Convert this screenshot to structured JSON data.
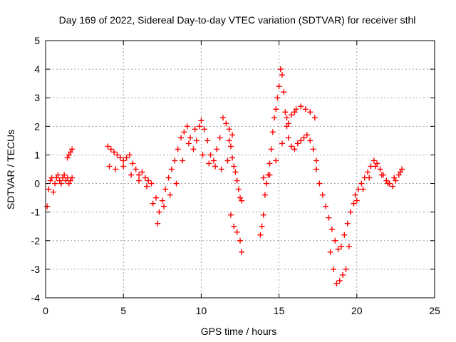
{
  "chart_data": {
    "type": "scatter",
    "title": "Day 169 of 2022, Sidereal Day-to-day VTEC variation (SDTVAR) for receiver sthl",
    "xlabel": "GPS time / hours",
    "ylabel": "SDTVAR / TECUs",
    "xlim": [
      0,
      25
    ],
    "ylim": [
      -4,
      5
    ],
    "xticks": [
      "0",
      "5",
      "10",
      "15",
      "20",
      "25"
    ],
    "yticks": [
      "-4",
      "-3",
      "-2",
      "-1",
      "0",
      "1",
      "2",
      "3",
      "4",
      "5"
    ],
    "grid": true,
    "marker": "+",
    "series_color": "#ff0000",
    "series": [
      {
        "name": "SDTVAR",
        "x": [
          0.1,
          0.2,
          0.3,
          0.4,
          0.5,
          0.6,
          0.7,
          0.8,
          0.9,
          1.0,
          1.1,
          1.2,
          1.3,
          1.4,
          1.5,
          1.6,
          1.7,
          1.4,
          1.5,
          1.6,
          1.7,
          4.0,
          4.2,
          4.4,
          4.6,
          4.8,
          5.0,
          5.2,
          5.4,
          5.6,
          5.8,
          6.0,
          6.2,
          6.4,
          6.6,
          6.8,
          4.1,
          4.5,
          5.0,
          5.5,
          6.0,
          6.5,
          6.9,
          7.1,
          7.3,
          7.5,
          7.7,
          7.9,
          8.1,
          8.3,
          8.5,
          8.7,
          8.9,
          9.1,
          9.3,
          9.5,
          9.7,
          9.9,
          7.2,
          7.6,
          8.0,
          8.4,
          8.8,
          9.2,
          9.6,
          10.0,
          10.2,
          10.4,
          10.6,
          10.8,
          11.0,
          11.2,
          11.4,
          11.6,
          11.8,
          12.0,
          10.1,
          10.5,
          10.9,
          11.3,
          11.7,
          11.8,
          11.9,
          12.0,
          12.1,
          12.2,
          12.3,
          12.4,
          12.5,
          12.6,
          11.9,
          12.1,
          12.3,
          12.5,
          12.6,
          13.8,
          13.9,
          14.0,
          14.1,
          14.2,
          14.3,
          14.4,
          14.5,
          14.6,
          14.7,
          14.8,
          14.9,
          15.0,
          15.1,
          15.2,
          15.3,
          15.4,
          15.5,
          15.6,
          15.8,
          16.0,
          16.2,
          16.4,
          16.6,
          16.8,
          17.0,
          17.2,
          17.4,
          14.0,
          14.4,
          14.8,
          15.2,
          15.6,
          16.0,
          15.5,
          15.8,
          16.1,
          16.4,
          16.7,
          17.0,
          17.3,
          17.4,
          17.6,
          17.8,
          18.0,
          18.2,
          18.4,
          18.6,
          18.8,
          19.0,
          19.2,
          19.4,
          19.6,
          19.8,
          18.3,
          18.5,
          18.7,
          18.9,
          19.1,
          19.3,
          19.5,
          19.9,
          20.1,
          20.3,
          20.5,
          20.7,
          20.9,
          21.1,
          21.3,
          21.5,
          21.7,
          21.9,
          22.1,
          22.3,
          22.5,
          22.7,
          22.9,
          20.0,
          20.4,
          20.8,
          21.2,
          21.6,
          22.0,
          22.4,
          22.8
        ],
        "y": [
          -0.8,
          -0.2,
          0.1,
          0.2,
          -0.3,
          0.0,
          0.2,
          0.3,
          0.1,
          0.0,
          0.2,
          0.3,
          0.1,
          0.2,
          0.0,
          0.1,
          0.2,
          0.9,
          1.0,
          1.1,
          1.2,
          1.3,
          1.2,
          1.1,
          1.0,
          0.9,
          0.8,
          0.9,
          1.0,
          0.7,
          0.5,
          0.3,
          0.4,
          0.2,
          0.1,
          0.0,
          0.6,
          0.5,
          0.6,
          0.3,
          0.1,
          -0.1,
          -0.7,
          -0.5,
          -1.0,
          -0.6,
          -0.2,
          0.2,
          0.5,
          0.8,
          1.2,
          1.6,
          1.8,
          2.0,
          1.6,
          1.2,
          1.5,
          2.0,
          -1.4,
          -0.8,
          -0.4,
          0.0,
          0.8,
          1.4,
          1.9,
          2.2,
          1.9,
          1.5,
          1.0,
          0.8,
          1.2,
          1.6,
          2.3,
          2.1,
          1.9,
          1.7,
          1.0,
          0.7,
          0.6,
          0.5,
          0.8,
          1.5,
          1.3,
          0.9,
          0.6,
          0.4,
          0.1,
          -0.2,
          -0.5,
          -0.6,
          -1.1,
          -1.5,
          -1.7,
          -2.0,
          -2.4,
          -1.8,
          -1.5,
          -1.1,
          -0.4,
          0.0,
          0.3,
          0.7,
          1.2,
          1.8,
          2.3,
          2.6,
          3.0,
          3.4,
          4.0,
          3.8,
          3.2,
          2.5,
          2.0,
          1.6,
          1.3,
          1.2,
          1.4,
          1.5,
          1.6,
          1.7,
          1.5,
          1.2,
          0.8,
          0.2,
          0.3,
          0.8,
          1.4,
          2.1,
          2.5,
          2.3,
          2.4,
          2.6,
          2.7,
          2.6,
          2.5,
          2.3,
          0.5,
          0.0,
          -0.4,
          -0.8,
          -1.2,
          -1.6,
          -2.0,
          -2.3,
          -2.2,
          -1.8,
          -1.4,
          -1.0,
          -0.7,
          -2.4,
          -3.0,
          -3.5,
          -3.4,
          -3.2,
          -3.0,
          -2.2,
          -0.4,
          -0.2,
          0.0,
          0.2,
          0.4,
          0.6,
          0.8,
          0.7,
          0.5,
          0.3,
          0.1,
          0.0,
          -0.1,
          0.1,
          0.3,
          0.5,
          -0.6,
          -0.2,
          0.2,
          0.6,
          0.3,
          0.0,
          0.2,
          0.4
        ]
      }
    ]
  }
}
